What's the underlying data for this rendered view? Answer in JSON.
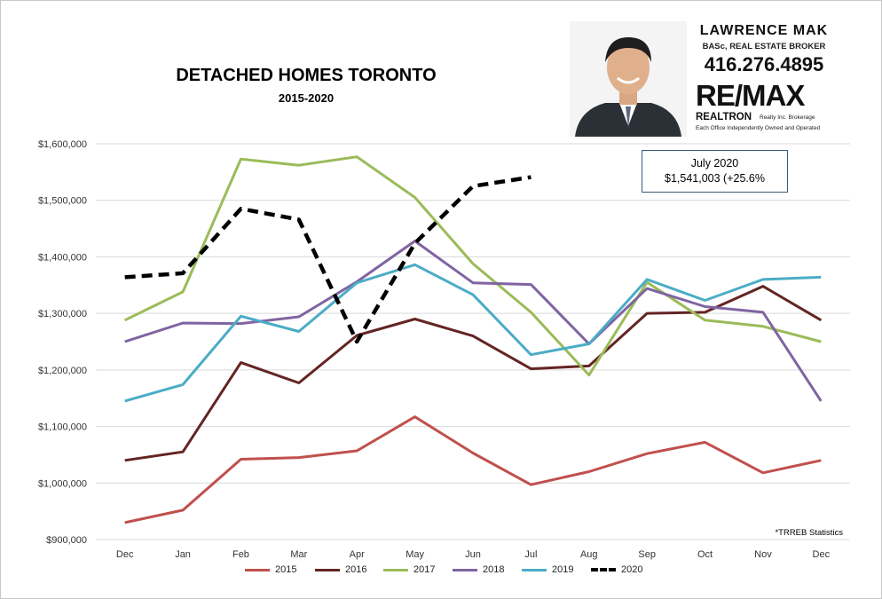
{
  "title": "DETACHED HOMES TORONTO",
  "subtitle": "2015-2020",
  "branding": {
    "name": "LAWRENCE MAK",
    "credentials": "BASc, REAL ESTATE BROKER",
    "phone": "416.276.4895",
    "logo_text": "RE/MAX",
    "brokerage": "REALTRON",
    "brokerage_sub": "Realty Inc. Brokerage",
    "brokerage_note": "Each Office Independently Owned and Operated"
  },
  "annotation": {
    "line1": "July 2020",
    "line2": "$1,541,003  (+25.6%"
  },
  "source_note": "*TRREB Statistics",
  "colors": {
    "2015": "#c0504d",
    "2016": "#632523",
    "2017": "#9bbb59",
    "2018": "#8064a2",
    "2019": "#4bacc6",
    "2020": "#000000",
    "gridline": "#d9d9d9",
    "axis_text": "#333333"
  },
  "chart_data": {
    "type": "line",
    "title": "DETACHED HOMES TORONTO",
    "subtitle": "2015-2020",
    "xlabel": "",
    "ylabel": "",
    "ylim": [
      900000,
      1600000
    ],
    "yticks": [
      900000,
      1000000,
      1100000,
      1200000,
      1300000,
      1400000,
      1500000,
      1600000
    ],
    "ytick_labels": [
      "$900,000",
      "$1,000,000",
      "$1,100,000",
      "$1,200,000",
      "$1,300,000",
      "$1,400,000",
      "$1,500,000",
      "$1,600,000"
    ],
    "grid": true,
    "legend_position": "bottom",
    "categories": [
      "Dec",
      "Jan",
      "Feb",
      "Mar",
      "Apr",
      "May",
      "Jun",
      "Jul",
      "Aug",
      "Sep",
      "Oct",
      "Nov",
      "Dec"
    ],
    "series": [
      {
        "name": "2015",
        "style": "solid",
        "values": [
          930000,
          952000,
          1042000,
          1045000,
          1057000,
          1117000,
          1053000,
          997000,
          1020000,
          1052000,
          1072000,
          1018000,
          1040000
        ]
      },
      {
        "name": "2016",
        "style": "solid",
        "values": [
          1040000,
          1055000,
          1213000,
          1177000,
          1261000,
          1290000,
          1260000,
          1202000,
          1207000,
          1300000,
          1302000,
          1348000,
          1288000
        ]
      },
      {
        "name": "2017",
        "style": "solid",
        "values": [
          1288000,
          1338000,
          1573000,
          1562000,
          1577000,
          1505000,
          1388000,
          1302000,
          1191000,
          1355000,
          1288000,
          1277000,
          1250000
        ]
      },
      {
        "name": "2018",
        "style": "solid",
        "values": [
          1250000,
          1283000,
          1282000,
          1294000,
          1356000,
          1428000,
          1354000,
          1351000,
          1246000,
          1344000,
          1312000,
          1302000,
          1145000
        ]
      },
      {
        "name": "2019",
        "style": "solid",
        "values": [
          1145000,
          1174000,
          1295000,
          1268000,
          1354000,
          1386000,
          1333000,
          1227000,
          1246000,
          1360000,
          1323000,
          1360000,
          1364000
        ]
      },
      {
        "name": "2020",
        "style": "dashed",
        "values": [
          1364000,
          1371000,
          1485000,
          1466000,
          1250000,
          1424000,
          1525000,
          1541003,
          null,
          null,
          null,
          null,
          null
        ]
      }
    ]
  }
}
